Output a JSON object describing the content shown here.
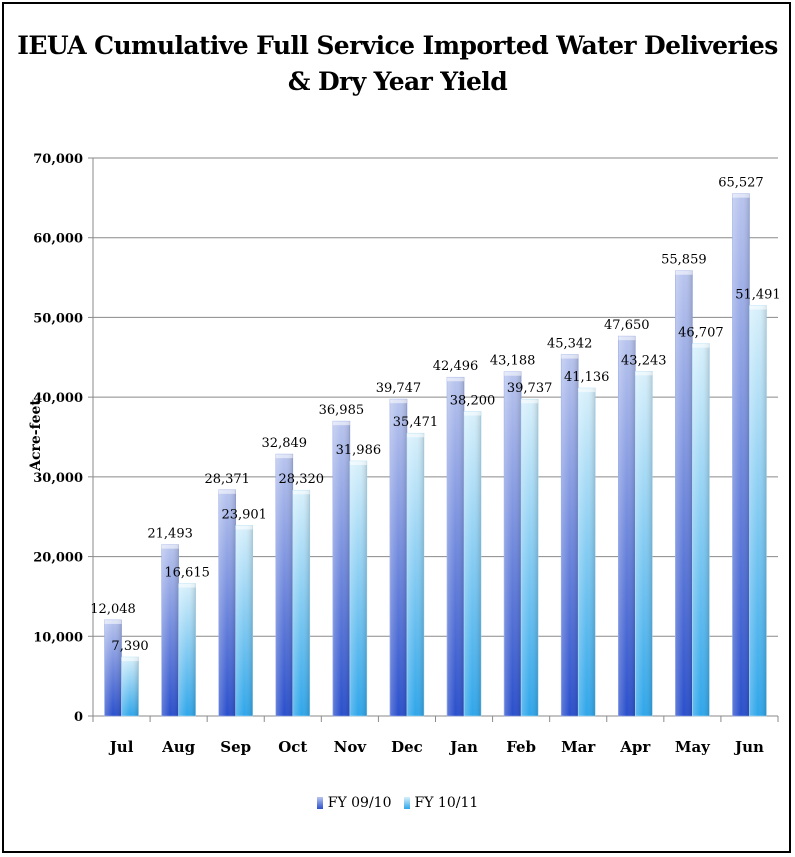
{
  "chart_data": {
    "type": "bar",
    "title": "IEUA Cumulative Full Service Imported Water Deliveries\n& Dry Year Yield",
    "xlabel": "",
    "ylabel": "Acre-feet",
    "ylim": [
      0,
      70000
    ],
    "yticks": [
      "0",
      "10,000",
      "20,000",
      "30,000",
      "40,000",
      "50,000",
      "60,000",
      "70,000"
    ],
    "categories": [
      "Jul",
      "Aug",
      "Sep",
      "Oct",
      "Nov",
      "Dec",
      "Jan",
      "Feb",
      "Mar",
      "Apr",
      "May",
      "Jun"
    ],
    "series": [
      {
        "name": "FY 09/10",
        "color": "#3f66d6",
        "values": [
          12048,
          21493,
          28371,
          32849,
          36985,
          39747,
          42496,
          43188,
          45342,
          47650,
          55859,
          65527
        ],
        "labels": [
          "12,048",
          "21,493",
          "28,371",
          "32,849",
          "36,985",
          "39,747",
          "42,496",
          "43,188",
          "45,342",
          "47,650",
          "55,859",
          "65,527"
        ]
      },
      {
        "name": "FY 10/11",
        "color": "#4fb6ee",
        "values": [
          7390,
          16615,
          23901,
          28320,
          31986,
          35471,
          38200,
          39737,
          41136,
          43243,
          46707,
          51491
        ],
        "labels": [
          "7,390",
          "16,615",
          "23,901",
          "28,320",
          "31,986",
          "35,471",
          "38,200",
          "39,737",
          "41,136",
          "43,243",
          "46,707",
          "51,491"
        ]
      }
    ],
    "grid": true,
    "legend": "bottom"
  }
}
